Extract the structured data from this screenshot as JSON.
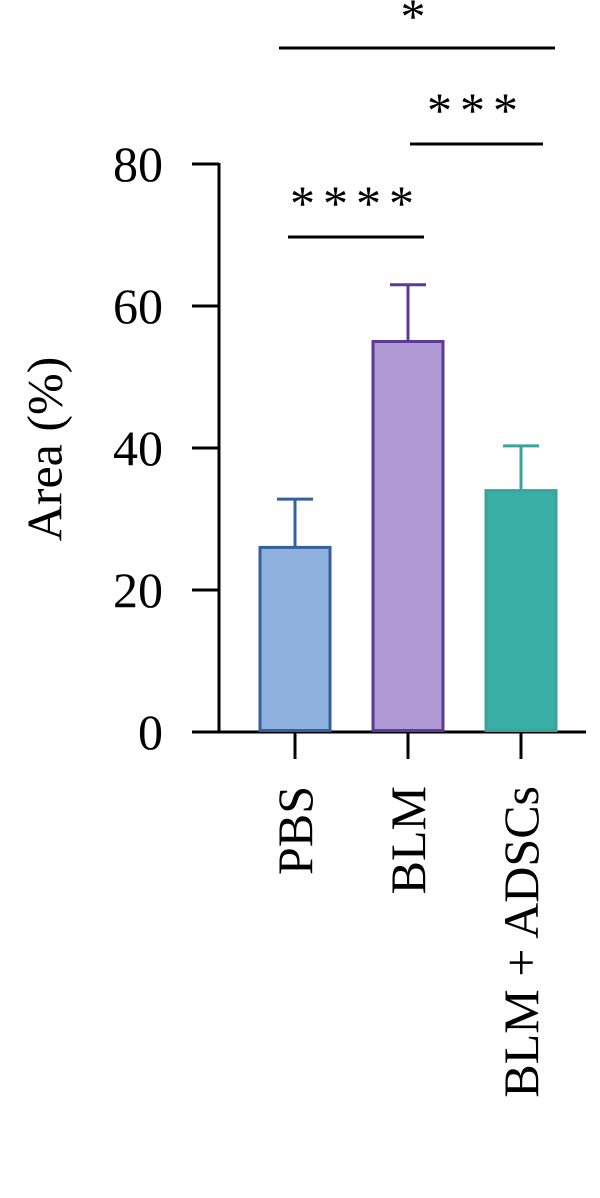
{
  "chart_data": {
    "type": "bar",
    "categories": [
      "PBS",
      "BLM",
      "BLM + ADSCs"
    ],
    "values": [
      26,
      55,
      34
    ],
    "errors": [
      6.8,
      8,
      6.3
    ],
    "ylabel": "Area (%)",
    "xlabel": "",
    "ylim": [
      0,
      80
    ],
    "yticks": [
      "0",
      "20",
      "40",
      "60",
      "80"
    ],
    "grid": false,
    "colors": {
      "fills": [
        "#8fb1de",
        "#af9ad6",
        "#3aafa6"
      ],
      "strokes": [
        "#35609c",
        "#5c3b97",
        "#3aa39b"
      ]
    },
    "significance": [
      {
        "from": 0,
        "to": 1,
        "label": "****"
      },
      {
        "from": 1,
        "to": 2,
        "label": "***"
      },
      {
        "from": 0,
        "to": 2,
        "label": "*"
      }
    ]
  }
}
